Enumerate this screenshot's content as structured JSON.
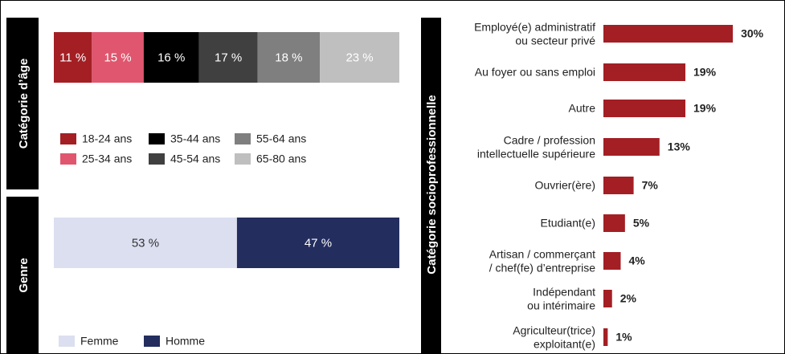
{
  "chart_data": [
    {
      "type": "stacked_bar",
      "axis_label": "Catégorie d’âge",
      "series": [
        {
          "name": "18-24 ans",
          "color": "#a31f24",
          "values": [
            11
          ],
          "value_labels": [
            "11 %"
          ]
        },
        {
          "name": "25-34 ans",
          "color": "#e0566e",
          "values": [
            15
          ],
          "value_labels": [
            "15 %"
          ]
        },
        {
          "name": "35-44 ans",
          "color": "#000000",
          "values": [
            16
          ],
          "value_labels": [
            "16 %"
          ]
        },
        {
          "name": "45-54 ans",
          "color": "#404040",
          "values": [
            17
          ],
          "value_labels": [
            "17 %"
          ]
        },
        {
          "name": "55-64 ans",
          "color": "#7f7f7f",
          "values": [
            18
          ],
          "value_labels": [
            "18 %"
          ]
        },
        {
          "name": "65-80 ans",
          "color": "#bfbfbf",
          "values": [
            23
          ],
          "value_labels": [
            "23 %"
          ]
        }
      ]
    },
    {
      "type": "stacked_bar",
      "axis_label": "Genre",
      "series": [
        {
          "name": "Femme",
          "color": "#dcdff0",
          "values": [
            53
          ],
          "value_labels": [
            "53 %"
          ]
        },
        {
          "name": "Homme",
          "color": "#232d5e",
          "values": [
            47
          ],
          "value_labels": [
            "47 %"
          ]
        }
      ]
    },
    {
      "type": "bar",
      "axis_label": "Catégorie socioprofessionnelle",
      "color": "#a31f24",
      "categories": [
        "Employé(e) administratif\nou secteur privé",
        "Au foyer ou sans emploi",
        "Autre",
        "Cadre / profession\nintellectuelle supérieure",
        "Ouvrier(ère)",
        "Etudiant(e)",
        "Artisan / commerçant\n/ chef(fe) d’entreprise",
        "Indépendant\nou intérimaire",
        "Agriculteur(trice)\nexploitant(e)"
      ],
      "values": [
        30,
        19,
        19,
        13,
        7,
        5,
        4,
        2,
        1
      ],
      "value_labels": [
        "30%",
        "19%",
        "19%",
        "13%",
        "7%",
        "5%",
        "4%",
        "2%",
        "1%"
      ]
    }
  ]
}
